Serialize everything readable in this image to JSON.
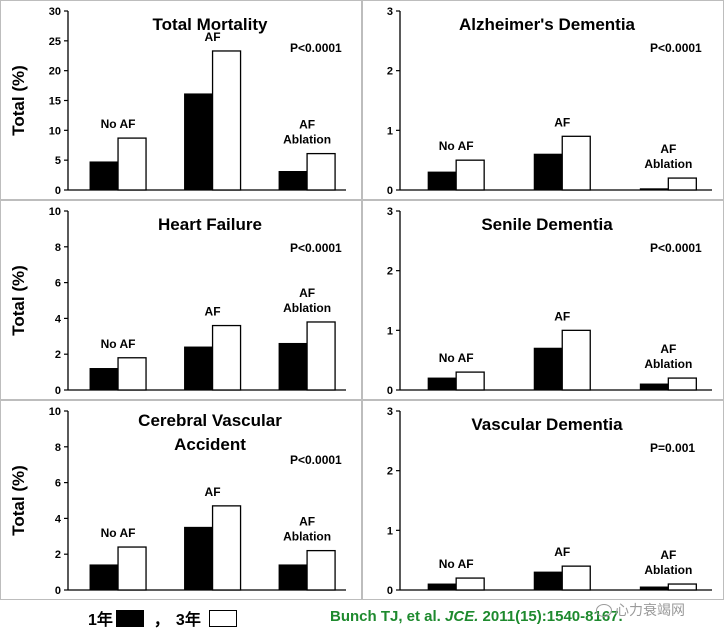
{
  "legend": {
    "year1_label": "1年",
    "separator": "，",
    "year3_label": "3年"
  },
  "citation": {
    "prefix": "Bunch TJ, et al. ",
    "journal": "JCE.",
    "suffix": " 2011(15):1540-8167."
  },
  "watermark": {
    "text": "心力衰竭网"
  },
  "colors": {
    "year1": "#000000",
    "year3": "#ffffff",
    "citation": "#1e8a2e"
  },
  "chart_data": [
    {
      "type": "bar",
      "title": [
        "Total Mortality"
      ],
      "ylabel": "Total (%)",
      "ylim": [
        0,
        30
      ],
      "yticks": [
        "0",
        "5",
        "10",
        "15",
        "20",
        "25",
        "30"
      ],
      "pvalue": "P<0.0001",
      "categories": [
        {
          "label": [
            "No AF"
          ],
          "values": [
            4.7,
            8.7
          ]
        },
        {
          "label": [
            "AF"
          ],
          "values": [
            16.1,
            23.3
          ]
        },
        {
          "label": [
            "AF",
            "Ablation"
          ],
          "values": [
            3.1,
            6.1
          ]
        }
      ],
      "series": [
        "1年",
        "3年"
      ]
    },
    {
      "type": "bar",
      "title": [
        "Alzheimer's Dementia"
      ],
      "ylabel": "",
      "ylim": [
        0,
        3
      ],
      "yticks": [
        "0",
        "1",
        "2",
        "3"
      ],
      "pvalue": "P<0.0001",
      "categories": [
        {
          "label": [
            "No AF"
          ],
          "values": [
            0.3,
            0.5
          ]
        },
        {
          "label": [
            "AF"
          ],
          "values": [
            0.6,
            0.9
          ]
        },
        {
          "label": [
            "AF",
            "Ablation"
          ],
          "values": [
            0.02,
            0.2
          ]
        }
      ],
      "series": [
        "1年",
        "3年"
      ]
    },
    {
      "type": "bar",
      "title": [
        "Heart Failure"
      ],
      "ylabel": "Total (%)",
      "ylim": [
        0,
        10
      ],
      "yticks": [
        "0",
        "2",
        "4",
        "6",
        "8",
        "10"
      ],
      "pvalue": "P<0.0001",
      "categories": [
        {
          "label": [
            "No AF"
          ],
          "values": [
            1.2,
            1.8
          ]
        },
        {
          "label": [
            "AF"
          ],
          "values": [
            2.4,
            3.6
          ]
        },
        {
          "label": [
            "AF",
            "Ablation"
          ],
          "values": [
            2.6,
            3.8
          ]
        }
      ],
      "series": [
        "1年",
        "3年"
      ]
    },
    {
      "type": "bar",
      "title": [
        "Senile Dementia"
      ],
      "ylabel": "",
      "ylim": [
        0,
        3
      ],
      "yticks": [
        "0",
        "1",
        "2",
        "3"
      ],
      "pvalue": "P<0.0001",
      "categories": [
        {
          "label": [
            "No AF"
          ],
          "values": [
            0.2,
            0.3
          ]
        },
        {
          "label": [
            "AF"
          ],
          "values": [
            0.7,
            1.0
          ]
        },
        {
          "label": [
            "AF",
            "Ablation"
          ],
          "values": [
            0.1,
            0.2
          ]
        }
      ],
      "series": [
        "1年",
        "3年"
      ]
    },
    {
      "type": "bar",
      "title": [
        "Cerebral Vascular",
        "Accident"
      ],
      "ylabel": "Total (%)",
      "ylim": [
        0,
        10
      ],
      "yticks": [
        "0",
        "2",
        "4",
        "6",
        "8",
        "10"
      ],
      "pvalue": "P<0.0001",
      "categories": [
        {
          "label": [
            "No AF"
          ],
          "values": [
            1.4,
            2.4
          ]
        },
        {
          "label": [
            "AF"
          ],
          "values": [
            3.5,
            4.7
          ]
        },
        {
          "label": [
            "AF",
            "Ablation"
          ],
          "values": [
            1.4,
            2.2
          ]
        }
      ],
      "series": [
        "1年",
        "3年"
      ]
    },
    {
      "type": "bar",
      "title": [
        "Vascular Dementia"
      ],
      "ylabel": "",
      "ylim": [
        0,
        3
      ],
      "yticks": [
        "0",
        "1",
        "2",
        "3"
      ],
      "pvalue": "P=0.001",
      "categories": [
        {
          "label": [
            "No AF"
          ],
          "values": [
            0.1,
            0.2
          ]
        },
        {
          "label": [
            "AF"
          ],
          "values": [
            0.3,
            0.4
          ]
        },
        {
          "label": [
            "AF",
            "Ablation"
          ],
          "values": [
            0.05,
            0.1
          ]
        }
      ],
      "series": [
        "1年",
        "3年"
      ]
    }
  ]
}
